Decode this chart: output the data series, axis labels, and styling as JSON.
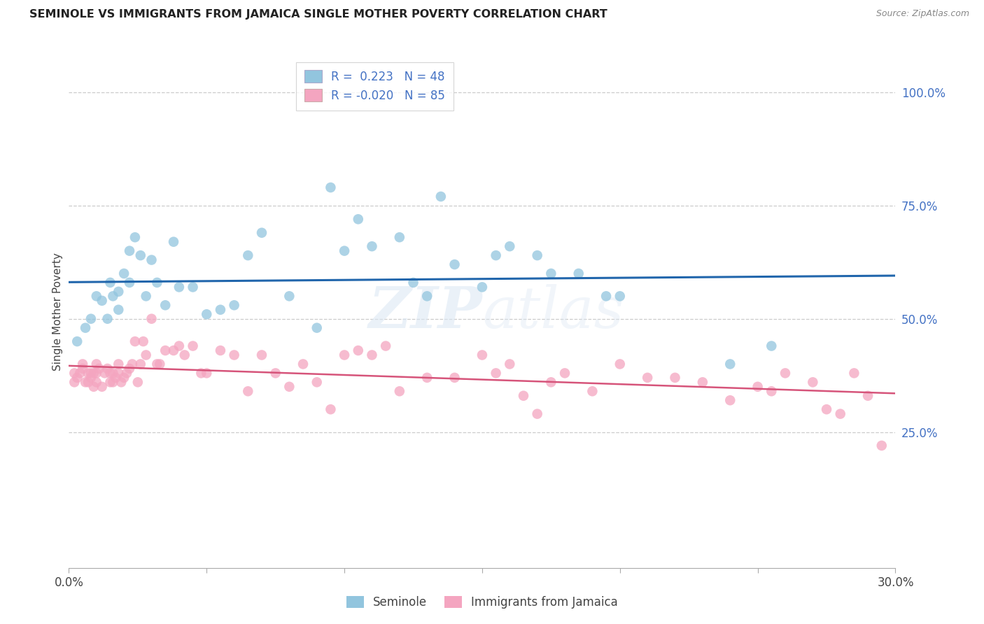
{
  "title": "SEMINOLE VS IMMIGRANTS FROM JAMAICA SINGLE MOTHER POVERTY CORRELATION CHART",
  "source": "Source: ZipAtlas.com",
  "ylabel": "Single Mother Poverty",
  "xlim": [
    0.0,
    0.3
  ],
  "ylim": [
    -0.05,
    1.08
  ],
  "xticks": [
    0.0,
    0.05,
    0.1,
    0.15,
    0.2,
    0.25,
    0.3
  ],
  "xtick_labels": [
    "0.0%",
    "",
    "",
    "",
    "",
    "",
    "30.0%"
  ],
  "ytick_labels_right": [
    "100.0%",
    "75.0%",
    "50.0%",
    "25.0%"
  ],
  "ytick_vals_right": [
    1.0,
    0.75,
    0.5,
    0.25
  ],
  "watermark": "ZIPatlas",
  "legend_blue_r": "0.223",
  "legend_blue_n": "48",
  "legend_pink_r": "-0.020",
  "legend_pink_n": "85",
  "legend_blue_label_bottom": "Seminole",
  "legend_pink_label_bottom": "Immigrants from Jamaica",
  "blue_color": "#92c5de",
  "pink_color": "#f4a5c0",
  "blue_line_color": "#2166ac",
  "pink_line_color": "#d6547a",
  "blue_x": [
    0.003,
    0.006,
    0.008,
    0.01,
    0.012,
    0.014,
    0.015,
    0.016,
    0.018,
    0.018,
    0.02,
    0.022,
    0.022,
    0.024,
    0.026,
    0.028,
    0.03,
    0.032,
    0.035,
    0.038,
    0.04,
    0.045,
    0.05,
    0.055,
    0.06,
    0.065,
    0.07,
    0.08,
    0.09,
    0.095,
    0.1,
    0.105,
    0.11,
    0.12,
    0.125,
    0.13,
    0.135,
    0.14,
    0.15,
    0.155,
    0.16,
    0.17,
    0.175,
    0.185,
    0.195,
    0.2,
    0.24,
    0.255
  ],
  "blue_y": [
    0.45,
    0.48,
    0.5,
    0.55,
    0.54,
    0.5,
    0.58,
    0.55,
    0.56,
    0.52,
    0.6,
    0.58,
    0.65,
    0.68,
    0.64,
    0.55,
    0.63,
    0.58,
    0.53,
    0.67,
    0.57,
    0.57,
    0.51,
    0.52,
    0.53,
    0.64,
    0.69,
    0.55,
    0.48,
    0.79,
    0.65,
    0.72,
    0.66,
    0.68,
    0.58,
    0.55,
    0.77,
    0.62,
    0.57,
    0.64,
    0.66,
    0.64,
    0.6,
    0.6,
    0.55,
    0.55,
    0.4,
    0.44
  ],
  "pink_x": [
    0.002,
    0.002,
    0.003,
    0.004,
    0.005,
    0.005,
    0.006,
    0.007,
    0.007,
    0.008,
    0.008,
    0.009,
    0.009,
    0.01,
    0.01,
    0.01,
    0.011,
    0.012,
    0.013,
    0.014,
    0.015,
    0.015,
    0.016,
    0.016,
    0.017,
    0.018,
    0.018,
    0.019,
    0.02,
    0.021,
    0.022,
    0.023,
    0.024,
    0.025,
    0.026,
    0.027,
    0.028,
    0.03,
    0.032,
    0.033,
    0.035,
    0.038,
    0.04,
    0.042,
    0.045,
    0.048,
    0.05,
    0.055,
    0.06,
    0.065,
    0.07,
    0.075,
    0.08,
    0.085,
    0.09,
    0.095,
    0.1,
    0.105,
    0.11,
    0.115,
    0.12,
    0.13,
    0.14,
    0.15,
    0.155,
    0.16,
    0.165,
    0.17,
    0.175,
    0.18,
    0.19,
    0.2,
    0.21,
    0.22,
    0.23,
    0.24,
    0.25,
    0.255,
    0.26,
    0.27,
    0.275,
    0.28,
    0.285,
    0.29,
    0.295
  ],
  "pink_y": [
    0.36,
    0.38,
    0.37,
    0.38,
    0.39,
    0.4,
    0.36,
    0.36,
    0.38,
    0.37,
    0.38,
    0.38,
    0.35,
    0.36,
    0.38,
    0.4,
    0.39,
    0.35,
    0.38,
    0.39,
    0.36,
    0.38,
    0.36,
    0.38,
    0.37,
    0.38,
    0.4,
    0.36,
    0.37,
    0.38,
    0.39,
    0.4,
    0.45,
    0.36,
    0.4,
    0.45,
    0.42,
    0.5,
    0.4,
    0.4,
    0.43,
    0.43,
    0.44,
    0.42,
    0.44,
    0.38,
    0.38,
    0.43,
    0.42,
    0.34,
    0.42,
    0.38,
    0.35,
    0.4,
    0.36,
    0.3,
    0.42,
    0.43,
    0.42,
    0.44,
    0.34,
    0.37,
    0.37,
    0.42,
    0.38,
    0.4,
    0.33,
    0.29,
    0.36,
    0.38,
    0.34,
    0.4,
    0.37,
    0.37,
    0.36,
    0.32,
    0.35,
    0.34,
    0.38,
    0.36,
    0.3,
    0.29,
    0.38,
    0.33,
    0.22
  ]
}
